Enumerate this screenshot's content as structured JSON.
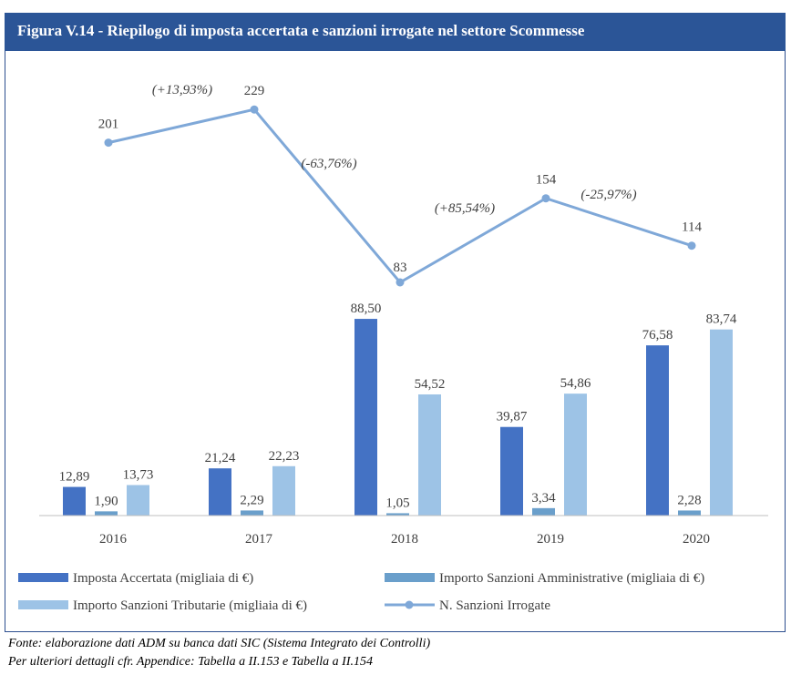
{
  "title": "Figura V.14 - Riepilogo di imposta accertata e sanzioni irrogate nel settore Scommesse",
  "footer": {
    "line1": "Fonte: elaborazione dati ADM su banca dati SIC (Sistema Integrato dei Controlli)",
    "line2": "Per ulteriori dettagli cfr. Appendice: Tabella a II.153 e Tabella a II.154"
  },
  "colors": {
    "title_bg": "#2b5597",
    "imposta": "#4472c4",
    "amministrative": "#6a9fcb",
    "tributarie": "#9dc3e6",
    "line": "#7fa8d8"
  },
  "chart_data": {
    "type": "bar",
    "categories": [
      "2016",
      "2017",
      "2018",
      "2019",
      "2020"
    ],
    "series": [
      {
        "name": "Imposta Accertata  (migliaia di €)",
        "values": [
          12.89,
          21.24,
          88.5,
          39.87,
          76.58
        ],
        "labels": [
          "12,89",
          "21,24",
          "88,50",
          "39,87",
          "76,58"
        ]
      },
      {
        "name": "Importo Sanzioni Amministrative (migliaia di €)",
        "values": [
          1.9,
          2.29,
          1.05,
          3.34,
          2.28
        ],
        "labels": [
          "1,90",
          "2,29",
          "1,05",
          "3,34",
          "2,28"
        ]
      },
      {
        "name": "Importo Sanzioni Tributarie (migliaia di €)",
        "values": [
          13.73,
          22.23,
          54.52,
          54.86,
          83.74
        ],
        "labels": [
          "13,73",
          "22,23",
          "54,52",
          "54,86",
          "83,74"
        ]
      }
    ],
    "line_series": {
      "name": "N. Sanzioni Irrogate",
      "type": "line",
      "values": [
        201,
        229,
        83,
        154,
        114
      ],
      "labels": [
        "201",
        "229",
        "83",
        "154",
        "114"
      ],
      "change_labels": [
        "(+13,93%)",
        "(-63,76%)",
        "(+85,54%)",
        "(-25,97%)"
      ]
    },
    "legend_position": "bottom",
    "grid": false
  }
}
